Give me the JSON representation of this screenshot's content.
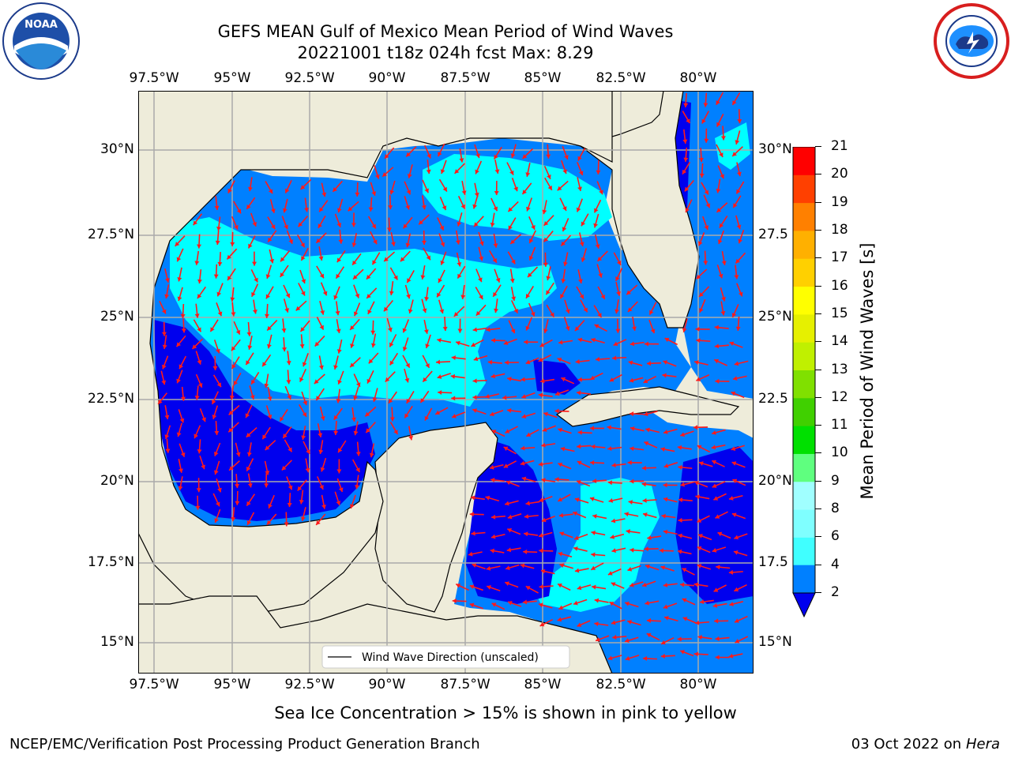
{
  "title": {
    "line1": "GEFS MEAN Gulf of Mexico Mean Period of Wind Waves",
    "line2": "20221001 t18z 024h fcst   Max: 8.29"
  },
  "map": {
    "lon_ticks": [
      "97.5°W",
      "95°W",
      "92.5°W",
      "90°W",
      "87.5°W",
      "85°W",
      "82.5°W",
      "80°W"
    ],
    "lat_ticks_left": [
      "30°N",
      "27.5°N",
      "25°N",
      "22.5°N",
      "20°N",
      "17.5°N",
      "15°N"
    ],
    "lat_ticks_right": [
      "30°N",
      "27.5",
      "25°N",
      "22.5",
      "20°N",
      "17.5",
      "15°N"
    ],
    "legend_label": "Wind Wave Direction (unscaled)",
    "colors": {
      "land": "#eeecda",
      "ocean_high": "#00ffff",
      "ocean_mid": "#0080ff",
      "ocean_low": "#0000ee",
      "arrow": "#ff1a1a"
    }
  },
  "colorbar": {
    "label": "Mean Period of Wind Waves [s]",
    "ticks": [
      "2",
      "4",
      "6",
      "8",
      "9",
      "10",
      "11",
      "12",
      "13",
      "14",
      "15",
      "16",
      "17",
      "18",
      "19",
      "20",
      "21"
    ],
    "colors": [
      "#0080ff",
      "#00e5ff",
      "#40ffff",
      "#7fffff",
      "#a0ffff",
      "#5fff7f",
      "#00e000",
      "#40d000",
      "#80e000",
      "#c0f000",
      "#e6f000",
      "#ffff00",
      "#ffd000",
      "#ffb000",
      "#ff8000",
      "#ff4000",
      "#ff0000"
    ]
  },
  "notes": {
    "sea_ice": "Sea Ice Concentration > 15% is shown in pink to yellow"
  },
  "footer": {
    "left": "NCEP/EMC/Verification Post Processing Product Generation Branch",
    "date": "03 Oct 2022 on ",
    "machine": "Hera"
  },
  "logos": {
    "noaa_text": "NOAA",
    "noaa_ring": "NATIONAL OCEANIC AND ATMOSPHERIC ADMINISTRATION · U.S. DEPARTMENT OF COMMERCE",
    "nws_ring": "NATIONAL WEATHER SERVICE"
  }
}
